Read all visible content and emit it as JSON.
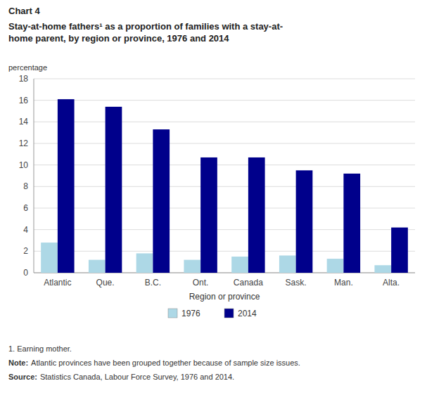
{
  "chart_data": {
    "type": "bar",
    "title": [
      "Stay-at-home fathers¹ as a proportion of families with a stay-at-",
      "home parent, by region or province, 1976 and 2014"
    ],
    "annotations": [
      "Chart 4",
      "1. Earning mother.",
      "Note:",
      "Atlantic provinces have been grouped together because of sample size issues.",
      "Source:",
      "Statistics Canada, Labour Force Survey, 1976 and 2014."
    ],
    "ylabel": "percentage",
    "xlabel": "Region or province",
    "categories": [
      "Atlantic",
      "Que.",
      "B.C.",
      "Ont.",
      "Canada",
      "Sask.",
      "Man.",
      "Alta."
    ],
    "series": [
      {
        "name": "1976",
        "color": "#add8e6",
        "values": [
          2.8,
          1.2,
          1.8,
          1.2,
          1.5,
          1.6,
          1.3,
          0.7
        ]
      },
      {
        "name": "2014",
        "color": "#00008b",
        "values": [
          16.1,
          15.4,
          13.3,
          10.7,
          10.7,
          9.5,
          9.2,
          4.2
        ]
      }
    ],
    "ylim": [
      0,
      18
    ],
    "yticks": [
      0,
      2,
      4,
      6,
      8,
      10,
      12,
      14,
      16,
      18
    ],
    "grid": true,
    "legend": "bottom"
  }
}
